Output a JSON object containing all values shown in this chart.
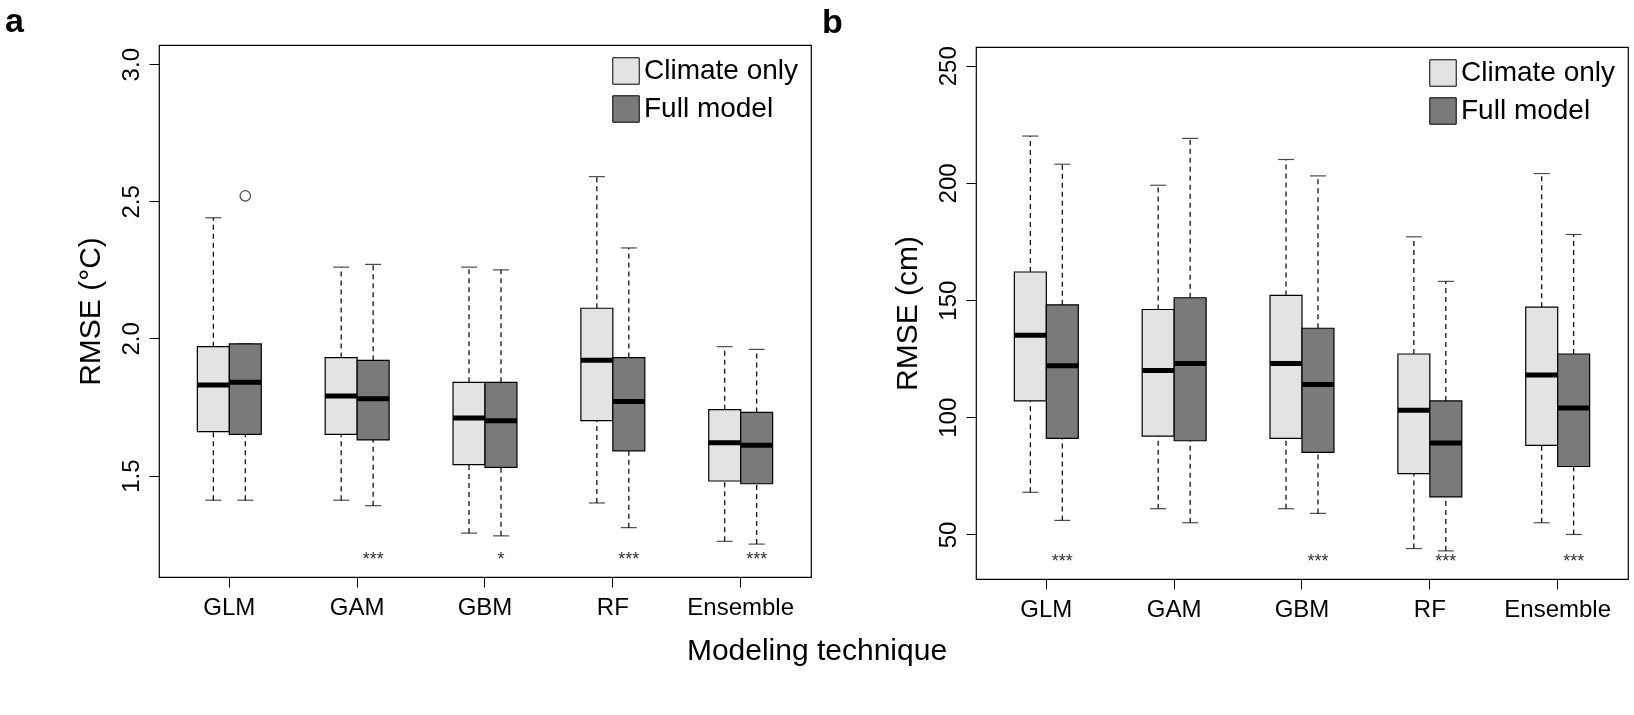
{
  "chart_data": [
    {
      "type": "box",
      "title": "a",
      "xlabel": "Modeling technique",
      "ylabel": "RMSE (°C)",
      "categories": [
        "GLM",
        "GAM",
        "GBM",
        "RF",
        "Ensemble"
      ],
      "ylim": [
        1.13,
        3.07
      ],
      "yticks": [
        1.5,
        {
          "value": 2,
          "label": "2.0"
        },
        2.5,
        {
          "value": 3,
          "label": "3.0"
        }
      ],
      "grid": false,
      "legend": "top right",
      "series": [
        {
          "name": "Climate only",
          "color": "#e3e3e3",
          "boxes": [
            {
              "low": 1.41,
              "q1": 1.66,
              "median": 1.83,
              "q3": 1.97,
              "high": 2.44
            },
            {
              "low": 1.41,
              "q1": 1.65,
              "median": 1.79,
              "q3": 1.93,
              "high": 2.26
            },
            {
              "low": 1.29,
              "q1": 1.54,
              "median": 1.71,
              "q3": 1.84,
              "high": 2.26
            },
            {
              "low": 1.4,
              "q1": 1.7,
              "median": 1.92,
              "q3": 2.11,
              "high": 2.59
            },
            {
              "low": 1.26,
              "q1": 1.48,
              "median": 1.62,
              "q3": 1.74,
              "high": 1.97
            }
          ]
        },
        {
          "name": "Full model",
          "color": "#7a7a7a",
          "boxes": [
            {
              "low": 1.41,
              "q1": 1.65,
              "median": 1.84,
              "q3": 1.98,
              "high": 1.98,
              "outliers": [
                2.52
              ]
            },
            {
              "low": 1.39,
              "q1": 1.63,
              "median": 1.78,
              "q3": 1.92,
              "high": 2.27
            },
            {
              "low": 1.28,
              "q1": 1.53,
              "median": 1.7,
              "q3": 1.84,
              "high": 2.25
            },
            {
              "low": 1.31,
              "q1": 1.59,
              "median": 1.77,
              "q3": 1.93,
              "high": 2.33
            },
            {
              "low": 1.25,
              "q1": 1.47,
              "median": 1.61,
              "q3": 1.73,
              "high": 1.96
            }
          ]
        }
      ],
      "annotations": [
        "***",
        "*",
        "***",
        "***"
      ]
    },
    {
      "type": "box",
      "title": "b",
      "ylabel": "RMSE (cm)",
      "categories": [
        "GLM",
        "GAM",
        "GBM",
        "RF",
        "Ensemble"
      ],
      "ylim": [
        31,
        258
      ],
      "yticks": [
        50,
        100,
        150,
        200,
        250
      ],
      "grid": false,
      "legend": "top right",
      "series": [
        {
          "name": "Climate only",
          "color": "#e3e3e3",
          "boxes": [
            {
              "low": 68,
              "q1": 107,
              "median": 135,
              "q3": 162,
              "high": 220
            },
            {
              "low": 61,
              "q1": 92,
              "median": 120,
              "q3": 146,
              "high": 199
            },
            {
              "low": 61,
              "q1": 91,
              "median": 123,
              "q3": 152,
              "high": 210
            },
            {
              "low": 44,
              "q1": 76,
              "median": 103,
              "q3": 127,
              "high": 177
            },
            {
              "low": 55,
              "q1": 88,
              "median": 118,
              "q3": 147,
              "high": 204
            }
          ]
        },
        {
          "name": "Full model",
          "color": "#7a7a7a",
          "boxes": [
            {
              "low": 56,
              "q1": 91,
              "median": 122,
              "q3": 148,
              "high": 208
            },
            {
              "low": 55,
              "q1": 90,
              "median": 123,
              "q3": 151,
              "high": 219
            },
            {
              "low": 59,
              "q1": 85,
              "median": 114,
              "q3": 138,
              "high": 203
            },
            {
              "low": 43,
              "q1": 66,
              "median": 89,
              "q3": 107,
              "high": 158
            },
            {
              "low": 50,
              "q1": 79,
              "median": 104,
              "q3": 127,
              "high": 178
            }
          ]
        }
      ],
      "annotations": [
        "***",
        "***",
        "***",
        "***"
      ]
    }
  ]
}
